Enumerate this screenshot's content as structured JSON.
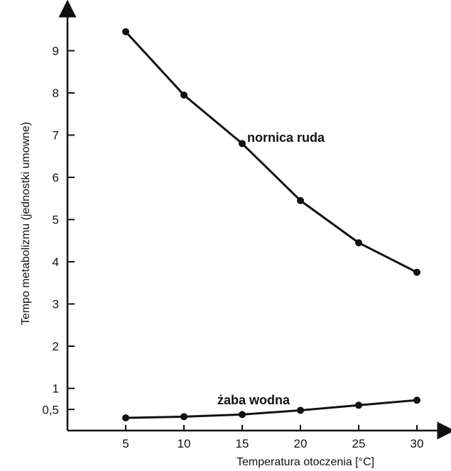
{
  "chart_data": {
    "type": "line",
    "xlabel": "Temperatura otoczenia [°C]",
    "ylabel": "Tempo metabolizmu (jednostki umowne)",
    "x": [
      5,
      10,
      15,
      20,
      25,
      30
    ],
    "xticks": [
      "5",
      "10",
      "15",
      "20",
      "25",
      "30"
    ],
    "yticks": [
      "0,5",
      "1",
      "2",
      "3",
      "4",
      "5",
      "6",
      "7",
      "8",
      "9"
    ],
    "ytick_values": [
      0.5,
      1,
      2,
      3,
      4,
      5,
      6,
      7,
      8,
      9
    ],
    "xlim": [
      0,
      32.5
    ],
    "ylim": [
      0,
      10
    ],
    "grid": false,
    "series": [
      {
        "name": "nornica ruda",
        "values": [
          9.45,
          7.95,
          6.8,
          5.45,
          4.45,
          3.75
        ]
      },
      {
        "name": "żaba wodna",
        "values": [
          0.3,
          0.33,
          0.38,
          0.48,
          0.6,
          0.72
        ]
      }
    ]
  }
}
